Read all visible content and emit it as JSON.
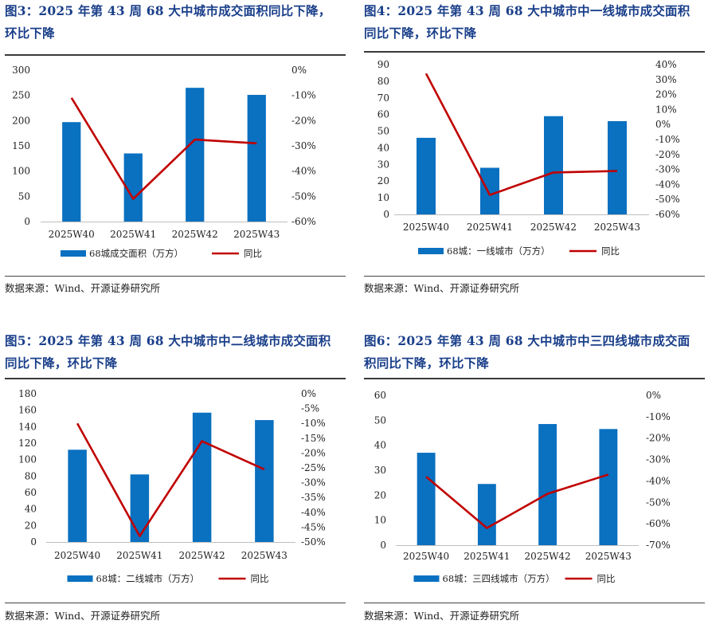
{
  "colors": {
    "bar": "#0a70c0",
    "line": "#c00000",
    "title": "#1a3f8a"
  },
  "figures": [
    {
      "title_line1": "图3：2025 年第 43 周 68 大中城市成交面积同比下降，",
      "title_line2": "环比下降",
      "source": "数据来源：Wind、开源证券研究所",
      "chart_data": {
        "type": "bar+line",
        "categories": [
          "2025W40",
          "2025W41",
          "2025W42",
          "2025W43"
        ],
        "series": [
          {
            "name": "68城成交面积（万方）",
            "type": "bar",
            "axis": "left",
            "values": [
              197,
              135,
              265,
              251
            ]
          },
          {
            "name": "同比",
            "type": "line",
            "axis": "right",
            "values": [
              -11,
              -51,
              -27.5,
              -29
            ]
          }
        ],
        "left_ticks": [
          "0",
          "50",
          "100",
          "150",
          "200",
          "250",
          "300"
        ],
        "ylim_left": [
          0,
          300
        ],
        "right_ticks": [
          "-60%",
          "-50%",
          "-40%",
          "-30%",
          "-20%",
          "-10%",
          "0%"
        ],
        "ylim_right": [
          -60,
          0
        ],
        "legend": [
          "68城成交面积（万方）",
          "同比"
        ]
      }
    },
    {
      "title_line1": "图4：2025 年第 43 周 68 大中城市中一线城市成交面积",
      "title_line2": "同比下降，环比下降",
      "source": "数据来源：Wind、开源证券研究所",
      "chart_data": {
        "type": "bar+line",
        "categories": [
          "2025W40",
          "2025W41",
          "2025W42",
          "2025W43"
        ],
        "series": [
          {
            "name": "68城：一线城市（万方）",
            "type": "bar",
            "axis": "left",
            "values": [
              46,
              28,
              59,
              56
            ]
          },
          {
            "name": "同比",
            "type": "line",
            "axis": "right",
            "values": [
              34,
              -47,
              -32,
              -31
            ]
          }
        ],
        "left_ticks": [
          "0",
          "10",
          "20",
          "30",
          "40",
          "50",
          "60",
          "70",
          "80",
          "90"
        ],
        "ylim_left": [
          0,
          90
        ],
        "right_ticks": [
          "-60%",
          "-50%",
          "-40%",
          "-30%",
          "-20%",
          "-10%",
          "0%",
          "10%",
          "20%",
          "30%",
          "40%"
        ],
        "ylim_right": [
          -60,
          40
        ],
        "legend": [
          "68城：一线城市（万方）",
          "同比"
        ]
      }
    },
    {
      "title_line1": "图5：2025 年第 43 周 68 大中城市中二线城市成交面积",
      "title_line2": "同比下降，环比下降",
      "source": "数据来源：Wind、开源证券研究所",
      "chart_data": {
        "type": "bar+line",
        "categories": [
          "2025W40",
          "2025W41",
          "2025W42",
          "2025W43"
        ],
        "series": [
          {
            "name": "68城：二线城市（万方）",
            "type": "bar",
            "axis": "left",
            "values": [
              112,
              82,
              157,
              148
            ]
          },
          {
            "name": "同比",
            "type": "line",
            "axis": "right",
            "values": [
              -10,
              -48,
              -16,
              -25.5
            ]
          }
        ],
        "left_ticks": [
          "0",
          "20",
          "40",
          "60",
          "80",
          "100",
          "120",
          "140",
          "160",
          "180"
        ],
        "ylim_left": [
          0,
          180
        ],
        "right_ticks": [
          "-50%",
          "-45%",
          "-40%",
          "-35%",
          "-30%",
          "-25%",
          "-20%",
          "-15%",
          "-10%",
          "-5%",
          "0%"
        ],
        "ylim_right": [
          -50,
          0
        ],
        "legend": [
          "68城：二线城市（万方）",
          "同比"
        ]
      }
    },
    {
      "title_line1": "图6：2025 年第 43 周 68 大中城市中三四线城市成交面",
      "title_line2": "积同比下降，环比下降",
      "source": "数据来源：Wind、开源证券研究所",
      "chart_data": {
        "type": "bar+line",
        "categories": [
          "2025W40",
          "2025W41",
          "2025W42",
          "2025W43"
        ],
        "series": [
          {
            "name": "68城：三四线城市（万方）",
            "type": "bar",
            "axis": "left",
            "values": [
              37,
              24.5,
              48.5,
              46.5
            ]
          },
          {
            "name": "同比",
            "type": "line",
            "axis": "right",
            "values": [
              -38,
              -62,
              -46,
              -37
            ]
          }
        ],
        "left_ticks": [
          "0",
          "10",
          "20",
          "30",
          "40",
          "50",
          "60"
        ],
        "ylim_left": [
          0,
          60
        ],
        "right_ticks": [
          "-70%",
          "-60%",
          "-50%",
          "-40%",
          "-30%",
          "-20%",
          "-10%",
          "0%"
        ],
        "ylim_right": [
          -70,
          0
        ],
        "legend": [
          "68城：三四线城市（万方）",
          "同比"
        ]
      }
    }
  ]
}
